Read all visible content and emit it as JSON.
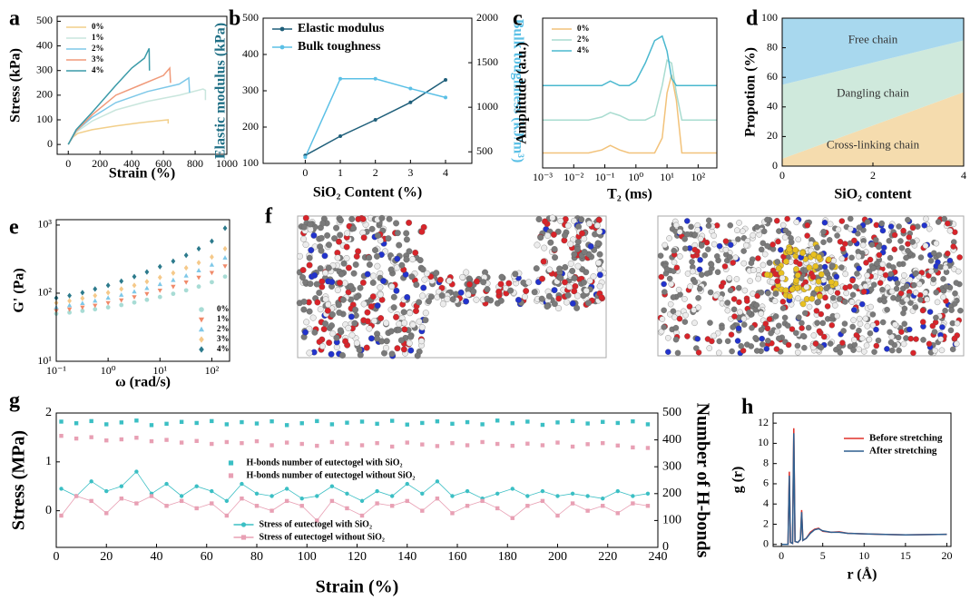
{
  "chart_data": [
    {
      "label": "a",
      "type": "line",
      "xlabel": "Strain (%)",
      "ylabel": "Stress (kPa)",
      "xlim": [
        -70,
        1000
      ],
      "xticks": [
        0,
        200,
        400,
        600,
        800,
        1000
      ],
      "ylim": [
        -40,
        520
      ],
      "yticks": [
        0,
        100,
        200,
        300,
        400,
        500
      ],
      "legend": "upper left",
      "series": [
        {
          "name": "0%",
          "color": "#f2cf8a",
          "x": [
            0,
            20,
            60,
            150,
            300,
            450,
            600,
            630,
            630
          ],
          "values": [
            0,
            25,
            45,
            60,
            75,
            88,
            98,
            100,
            85
          ]
        },
        {
          "name": "1%",
          "color": "#c9e6dd",
          "x": [
            0,
            50,
            150,
            300,
            500,
            700,
            850,
            865,
            865
          ],
          "values": [
            0,
            50,
            95,
            140,
            175,
            200,
            225,
            220,
            180
          ]
        },
        {
          "name": "2%",
          "color": "#7ec8e8",
          "x": [
            0,
            50,
            150,
            300,
            500,
            700,
            760,
            765
          ],
          "values": [
            0,
            55,
            110,
            170,
            215,
            245,
            270,
            210
          ]
        },
        {
          "name": "3%",
          "color": "#f09a7a",
          "x": [
            0,
            50,
            150,
            300,
            450,
            600,
            640,
            645
          ],
          "values": [
            0,
            55,
            120,
            200,
            240,
            280,
            310,
            250
          ]
        },
        {
          "name": "4%",
          "color": "#3a9aa8",
          "x": [
            0,
            50,
            150,
            300,
            400,
            480,
            510,
            512
          ],
          "values": [
            0,
            60,
            130,
            240,
            310,
            350,
            390,
            300
          ]
        }
      ]
    },
    {
      "label": "b",
      "type": "line",
      "xlabel": "SiO₂ Content (%)",
      "ylabel": "Elastic modulus (kPa)",
      "y2label": "Bulk toughness (kJ/m³)",
      "ylabel_color": "#1f6f85",
      "y2label_color": "#5bc0e6",
      "xlim": [
        -1.2,
        4.75
      ],
      "xticks": [
        0,
        1,
        2,
        3,
        4
      ],
      "ylim": [
        100,
        500
      ],
      "yticks": [
        100,
        200,
        300,
        400,
        500
      ],
      "y2lim": [
        370,
        2000
      ],
      "y2ticks": [
        500,
        1000,
        1500,
        2000
      ],
      "legend": "upper left",
      "x": [
        0,
        1,
        2,
        3,
        4
      ],
      "series": [
        {
          "name": "Elastic modulus",
          "color": "#1f5f7a",
          "marker": "circle",
          "values": [
            122,
            175,
            220,
            268,
            330
          ]
        },
        {
          "name": "Bulk toughness",
          "color": "#5bc0e6",
          "marker": "circle",
          "axis": "y2",
          "values": [
            440,
            1320,
            1320,
            1210,
            1110
          ]
        }
      ]
    },
    {
      "label": "c",
      "type": "line",
      "xlabel": "T₂ (ms)",
      "ylabel": "Amplitude (a.u.)",
      "xlog": true,
      "xlim": [
        0.001,
        400
      ],
      "xticks": [
        {
          "value": 0.001,
          "label": "10⁻³"
        },
        {
          "value": 0.01,
          "label": "10⁻²"
        },
        {
          "value": 0.1,
          "label": "10⁻¹"
        },
        {
          "value": 1,
          "label": "10⁰"
        },
        {
          "value": 10,
          "label": "10¹"
        },
        {
          "value": 100,
          "label": "10²"
        }
      ],
      "ylim": [
        0,
        1
      ],
      "legend": "upper left",
      "x": [
        0.001,
        0.03,
        0.08,
        0.15,
        0.3,
        0.6,
        1,
        2,
        4,
        7,
        10,
        14,
        20,
        30,
        50,
        400
      ],
      "series": [
        {
          "name": "0%",
          "color": "#f2c27a",
          "values": [
            0.1,
            0.1,
            0.12,
            0.15,
            0.12,
            0.1,
            0.1,
            0.1,
            0.1,
            0.2,
            0.5,
            0.62,
            0.45,
            0.1,
            0.1,
            0.1
          ]
        },
        {
          "name": "2%",
          "color": "#a9dcd0",
          "values": [
            0.32,
            0.32,
            0.34,
            0.37,
            0.35,
            0.32,
            0.32,
            0.32,
            0.35,
            0.55,
            0.72,
            0.7,
            0.5,
            0.32,
            0.32,
            0.32
          ]
        },
        {
          "name": "4%",
          "color": "#4ab8cf",
          "values": [
            0.55,
            0.55,
            0.55,
            0.58,
            0.55,
            0.55,
            0.58,
            0.7,
            0.85,
            0.88,
            0.78,
            0.6,
            0.55,
            0.55,
            0.55,
            0.55
          ]
        }
      ]
    },
    {
      "label": "d",
      "type": "area",
      "xlabel": "SiO₂ content",
      "ylabel": "Propotion (%)",
      "xlim": [
        0,
        4
      ],
      "xticks": [
        0,
        2,
        4
      ],
      "ylim": [
        0,
        100
      ],
      "yticks": [
        0,
        20,
        40,
        60,
        80,
        100
      ],
      "x": [
        0,
        4
      ],
      "series": [
        {
          "name": "Cross-linking chain",
          "color": "#f5dcae",
          "values": [
            5,
            50
          ]
        },
        {
          "name": "Dangling chain",
          "color": "#cfe9dc",
          "values": [
            50,
            35
          ]
        },
        {
          "name": "Free chain",
          "color": "#a8d8ee",
          "values": [
            45,
            15
          ]
        }
      ]
    },
    {
      "label": "e",
      "type": "scatter",
      "xlabel": "ω (rad/s)",
      "ylabel": "G' (Pa)",
      "xlog": true,
      "ylog": true,
      "xlim": [
        0.1,
        220
      ],
      "ylim": [
        10,
        1200
      ],
      "xticks": [
        {
          "value": 0.1,
          "label": "10⁻¹"
        },
        {
          "value": 1,
          "label": "10⁰"
        },
        {
          "value": 10,
          "label": "10¹"
        },
        {
          "value": 100,
          "label": "10²"
        }
      ],
      "yticks": [
        {
          "value": 10,
          "label": "10¹"
        },
        {
          "value": 100,
          "label": "10²"
        },
        {
          "value": 1000,
          "label": "10³"
        }
      ],
      "legend": "lower right",
      "x": [
        0.1,
        0.18,
        0.32,
        0.56,
        1,
        1.8,
        3.2,
        5.6,
        10,
        18,
        32,
        56,
        100,
        180
      ],
      "series": [
        {
          "name": "0%",
          "color": "#a8dcd5",
          "marker": "circle",
          "values": [
            50,
            52,
            55,
            58,
            62,
            67,
            73,
            80,
            88,
            98,
            110,
            125,
            145,
            175
          ]
        },
        {
          "name": "1%",
          "color": "#f08a6a",
          "marker": "triangle-down",
          "values": [
            55,
            58,
            62,
            66,
            72,
            79,
            88,
            98,
            110,
            125,
            145,
            170,
            200,
            250
          ]
        },
        {
          "name": "2%",
          "color": "#7ec8e8",
          "marker": "triangle-up",
          "values": [
            62,
            66,
            71,
            77,
            85,
            94,
            105,
            118,
            135,
            155,
            180,
            215,
            260,
            330
          ]
        },
        {
          "name": "3%",
          "color": "#f5c98a",
          "marker": "diamond",
          "values": [
            72,
            77,
            84,
            92,
            102,
            115,
            130,
            148,
            170,
            198,
            235,
            280,
            340,
            450
          ]
        },
        {
          "name": "4%",
          "color": "#2c7a8c",
          "marker": "diamond",
          "values": [
            85,
            92,
            102,
            115,
            130,
            150,
            175,
            205,
            245,
            295,
            360,
            450,
            580,
            900
          ]
        }
      ]
    },
    {
      "label": "f",
      "type": "image"
    },
    {
      "label": "g",
      "type": "line",
      "xlabel": "Strain (%)",
      "ylabel": "Stress (MPa)",
      "y2label": "Number of H-bonds",
      "xlim": [
        0,
        240
      ],
      "xticks": [
        0,
        20,
        40,
        60,
        80,
        100,
        120,
        140,
        160,
        180,
        200,
        220,
        240
      ],
      "ylim": [
        -0.75,
        2
      ],
      "yticks": [
        0,
        1,
        2
      ],
      "y2lim": [
        0,
        500
      ],
      "y2ticks": [
        0,
        100,
        200,
        300,
        400,
        500
      ],
      "legend": "center",
      "x": [
        2,
        8,
        14,
        20,
        26,
        32,
        38,
        44,
        50,
        56,
        62,
        68,
        74,
        80,
        86,
        92,
        98,
        104,
        110,
        116,
        122,
        128,
        134,
        140,
        146,
        152,
        158,
        164,
        170,
        176,
        182,
        188,
        194,
        200,
        206,
        212,
        218,
        224,
        230,
        236
      ],
      "series": [
        {
          "name": "H-bonds number of eutectogel with SiO₂",
          "color": "#3bbfc4",
          "marker": "square",
          "line": false,
          "axis": "y2",
          "values": [
            468,
            462,
            470,
            458,
            465,
            472,
            455,
            460,
            467,
            463,
            470,
            458,
            466,
            461,
            469,
            455,
            462,
            470,
            458,
            464,
            468,
            460,
            471,
            457,
            463,
            469,
            460,
            466,
            458,
            472,
            462,
            468,
            456,
            465,
            470,
            461,
            467,
            463,
            469,
            458
          ]
        },
        {
          "name": "H-bonds number of eutectogel without SiO₂",
          "color": "#e8a0b4",
          "marker": "square",
          "line": false,
          "axis": "y2",
          "values": [
            415,
            405,
            410,
            398,
            402,
            408,
            395,
            400,
            390,
            396,
            385,
            392,
            388,
            395,
            380,
            390,
            385,
            378,
            392,
            386,
            380,
            388,
            375,
            390,
            383,
            377,
            388,
            380,
            392,
            385,
            378,
            386,
            380,
            390,
            375,
            384,
            388,
            379,
            372,
            370
          ]
        },
        {
          "name": "Stress of eutectogel with SiO₂",
          "color": "#3bbfc4",
          "marker": "circle",
          "values": [
            0.45,
            0.3,
            0.6,
            0.4,
            0.5,
            0.8,
            0.35,
            0.55,
            0.3,
            0.5,
            0.4,
            0.2,
            0.55,
            0.35,
            0.3,
            0.45,
            0.25,
            0.3,
            0.5,
            0.35,
            0.2,
            0.4,
            0.3,
            0.55,
            0.35,
            0.6,
            0.3,
            0.4,
            0.25,
            0.35,
            0.45,
            0.3,
            0.4,
            0.3,
            0.35,
            0.3,
            0.25,
            0.4,
            0.3,
            0.35
          ]
        },
        {
          "name": "Stress of eutectogel without SiO₂",
          "color": "#e8a0b4",
          "marker": "square",
          "values": [
            -0.1,
            0.3,
            0.2,
            -0.05,
            0.25,
            0.15,
            0.3,
            0.1,
            0.2,
            0.05,
            0.15,
            -0.1,
            0.25,
            0.1,
            0.0,
            0.2,
            0.1,
            -0.2,
            0.2,
            0.05,
            -0.1,
            0.15,
            0.1,
            0.2,
            0.0,
            0.25,
            -0.05,
            0.1,
            0.2,
            0.05,
            -0.15,
            0.1,
            0.2,
            -0.1,
            0.15,
            0.0,
            0.1,
            -0.05,
            0.15,
            0.1
          ]
        }
      ]
    },
    {
      "label": "h",
      "type": "line",
      "xlabel": "r (Å)",
      "ylabel": "g (r)",
      "xlim": [
        -1,
        20.5
      ],
      "xticks": [
        0,
        5,
        10,
        15,
        20
      ],
      "ylim": [
        -0.2,
        13
      ],
      "yticks": [
        0,
        2,
        4,
        6,
        8,
        10,
        12
      ],
      "legend": "upper right",
      "x": [
        0,
        0.8,
        0.96,
        1.1,
        1.35,
        1.5,
        1.65,
        2.0,
        2.3,
        2.45,
        2.6,
        3.0,
        3.5,
        4.0,
        4.5,
        5.0,
        6,
        7,
        8,
        10,
        12,
        15,
        20
      ],
      "series": [
        {
          "name": "Before stretching",
          "color": "#e0302a",
          "values": [
            0,
            0,
            7.2,
            0.2,
            0.1,
            11.5,
            0.3,
            0.2,
            0.5,
            3.4,
            0.4,
            0.6,
            1.2,
            1.5,
            1.6,
            1.3,
            1.2,
            1.25,
            1.1,
            1.05,
            1.0,
            0.95,
            1.0
          ]
        },
        {
          "name": "After stretching",
          "color": "#2f5f8f",
          "values": [
            0,
            0,
            6.8,
            0.2,
            0.1,
            11.0,
            0.3,
            0.2,
            0.5,
            3.2,
            0.4,
            0.6,
            1.1,
            1.45,
            1.55,
            1.35,
            1.2,
            1.2,
            1.1,
            1.05,
            1.0,
            0.95,
            1.0
          ]
        }
      ]
    }
  ]
}
